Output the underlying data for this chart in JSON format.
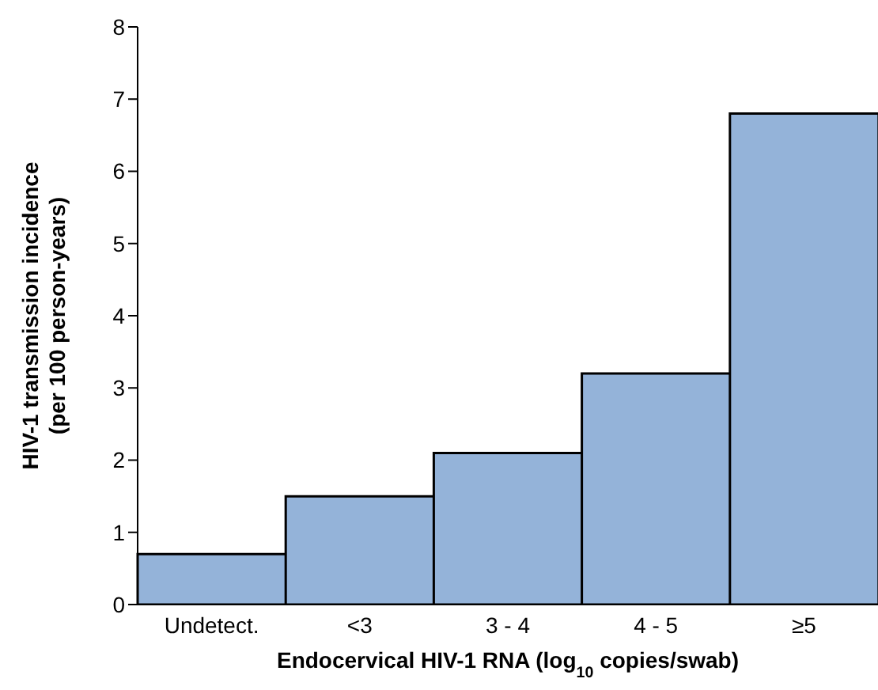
{
  "chart_data": {
    "type": "bar",
    "categories": [
      "Undetect.",
      "<3",
      "3 - 4",
      "4 - 5",
      "≥5"
    ],
    "values": [
      0.7,
      1.5,
      2.1,
      3.2,
      6.8
    ],
    "color": "#94b3d9",
    "xlabel": "Endocervical HIV-1 RNA (log$_{10}$ copies/swab)",
    "ylabel": "HIV-1 transmission incidence (per 100 person-years)",
    "ylim": [
      0,
      8
    ],
    "yticks": [
      0,
      1,
      2,
      3,
      4,
      5,
      6,
      7,
      8
    ],
    "grid": false,
    "legend": false
  }
}
